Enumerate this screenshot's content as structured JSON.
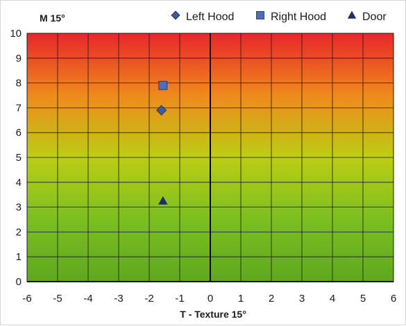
{
  "chart_data": {
    "type": "scatter",
    "title": "M 15°",
    "xlabel": "T - Texture 15°",
    "ylabel": "",
    "xlim": [
      -6,
      6
    ],
    "ylim": [
      0,
      10
    ],
    "x_ticks": [
      -6,
      -5,
      -4,
      -3,
      -2,
      -1,
      0,
      1,
      2,
      3,
      4,
      5,
      6
    ],
    "y_ticks": [
      0,
      1,
      2,
      3,
      4,
      5,
      6,
      7,
      8,
      9,
      10
    ],
    "grid": true,
    "legend_position": "top-right",
    "background_gradient": [
      "#e8262a",
      "#ef8a1c",
      "#bccd14",
      "#7bbf20",
      "#5fa81f"
    ],
    "series": [
      {
        "name": "Left Hood",
        "marker": "diamond",
        "color": "#3d5a9e",
        "points": [
          {
            "x": -1.6,
            "y": 6.9
          }
        ]
      },
      {
        "name": "Right Hood",
        "marker": "square",
        "color": "#4e6fb7",
        "points": [
          {
            "x": -1.55,
            "y": 7.9
          }
        ]
      },
      {
        "name": "Door",
        "marker": "triangle",
        "color": "#1f2d6e",
        "points": [
          {
            "x": -1.55,
            "y": 3.25
          }
        ]
      }
    ]
  }
}
